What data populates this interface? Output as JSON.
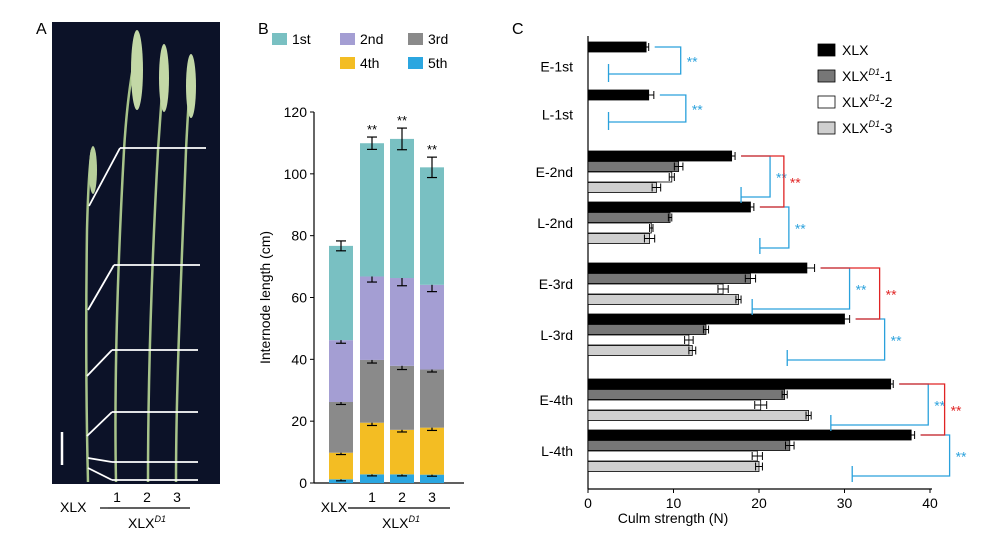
{
  "colors": {
    "first": "#79c0c2",
    "second": "#a49ed3",
    "third": "#8a8a8a",
    "fourth": "#f3bd23",
    "fifth": "#2ba6e0",
    "xlx": "#000000",
    "d1_1": "#777777",
    "d1_2": "#ffffff",
    "d1_3": "#cfcfcf",
    "sig_blue": "#2aa1dc",
    "sig_red": "#e02424",
    "photo_bg": "#0c1228",
    "plant": "#a8c48a"
  },
  "panel_a": {
    "label": "A",
    "xlx_label": "XLX",
    "mutant_base": "XLX",
    "mutant_sup": "D1",
    "plant_numbers": [
      "1",
      "2",
      "3"
    ]
  },
  "chart_data": [
    {
      "type": "bar",
      "stacked": true,
      "panel": "B",
      "categories": [
        "XLX",
        "1",
        "2",
        "3"
      ],
      "group_label_base": "XLX",
      "group_label_sup": "D1",
      "ylabel": "Internode length (cm)",
      "ylim": [
        0,
        120
      ],
      "yticks": [
        "0",
        "20",
        "40",
        "60",
        "80",
        "100",
        "120"
      ],
      "legend_position": "top",
      "significance_mark": "**",
      "series": [
        {
          "name": "5th",
          "values": [
            1.2,
            2.8,
            2.8,
            2.7
          ],
          "err": [
            0.5,
            0.5,
            0.5,
            0.5
          ],
          "sig": [
            false,
            true,
            true,
            true
          ]
        },
        {
          "name": "4th",
          "values": [
            8.6,
            16.7,
            14.4,
            15.2
          ],
          "err": [
            0.6,
            0.9,
            0.7,
            0.9
          ],
          "sig": [
            false,
            true,
            true,
            true
          ]
        },
        {
          "name": "3rd",
          "values": [
            16.4,
            20.3,
            20.7,
            18.8
          ],
          "err": [
            0.8,
            1.0,
            1.2,
            0.8
          ],
          "sig": [
            false,
            true,
            true,
            true
          ]
        },
        {
          "name": "2nd",
          "values": [
            20.0,
            27.0,
            28.4,
            27.4
          ],
          "err": [
            1.0,
            1.8,
            2.5,
            2.2
          ],
          "sig": [
            false,
            true,
            true,
            true
          ]
        },
        {
          "name": "1st",
          "values": [
            30.5,
            43.1,
            45.0,
            38.0
          ],
          "err": [
            1.6,
            2.0,
            3.5,
            3.3
          ],
          "sig": [
            false,
            true,
            true,
            true
          ]
        }
      ]
    },
    {
      "type": "bar",
      "orientation": "horizontal",
      "panel": "C",
      "categories": [
        "E-1st",
        "L-1st",
        "E-2nd",
        "L-2nd",
        "E-3rd",
        "L-3rd",
        "E-4th",
        "L-4th"
      ],
      "xlabel": "Culm strength (N)",
      "xlim": [
        0,
        40
      ],
      "xticks": [
        "0",
        "10",
        "20",
        "30",
        "40"
      ],
      "legend_position": "top-right",
      "series": [
        {
          "name_base": "XLX",
          "name_sup": "",
          "name_suffix": "",
          "values": [
            6.8,
            7.1,
            16.8,
            19.0,
            25.6,
            30.0,
            35.4,
            37.8
          ],
          "err": [
            0.3,
            0.6,
            0.4,
            0.4,
            0.9,
            0.6,
            0.3,
            0.4
          ]
        },
        {
          "name_base": "XLX",
          "name_sup": "D1",
          "name_suffix": "-1",
          "values": [
            null,
            null,
            10.6,
            9.6,
            19.0,
            13.8,
            23.0,
            23.6
          ],
          "err": [
            null,
            null,
            0.5,
            0.2,
            0.6,
            0.3,
            0.3,
            0.5
          ]
        },
        {
          "name_base": "XLX",
          "name_sup": "D1",
          "name_suffix": "-2",
          "values": [
            null,
            null,
            9.8,
            7.4,
            15.8,
            11.8,
            20.2,
            19.8
          ],
          "err": [
            null,
            null,
            0.3,
            0.2,
            0.6,
            0.5,
            0.7,
            0.6
          ]
        },
        {
          "name_base": "XLX",
          "name_sup": "D1",
          "name_suffix": "-3",
          "values": [
            null,
            null,
            8.0,
            7.2,
            17.6,
            12.2,
            25.8,
            20.0
          ],
          "err": [
            null,
            null,
            0.5,
            0.6,
            0.3,
            0.4,
            0.3,
            0.4
          ]
        }
      ],
      "significance": [
        {
          "categories": [
            "E-1st"
          ],
          "mark": "**",
          "color": "blue"
        },
        {
          "categories": [
            "L-1st"
          ],
          "mark": "**",
          "color": "blue"
        },
        {
          "categories": [
            "E-2nd"
          ],
          "mark": "**",
          "color": "blue"
        },
        {
          "categories": [
            "L-2nd"
          ],
          "mark": "**",
          "color": "blue"
        },
        {
          "categories": [
            "E-2nd",
            "L-2nd"
          ],
          "mark": "**",
          "color": "red"
        },
        {
          "categories": [
            "E-3rd"
          ],
          "mark": "**",
          "color": "blue"
        },
        {
          "categories": [
            "L-3rd"
          ],
          "mark": "**",
          "color": "blue"
        },
        {
          "categories": [
            "E-3rd",
            "L-3rd"
          ],
          "mark": "**",
          "color": "red"
        },
        {
          "categories": [
            "E-4th"
          ],
          "mark": "**",
          "color": "blue"
        },
        {
          "categories": [
            "L-4th"
          ],
          "mark": "**",
          "color": "blue"
        },
        {
          "categories": [
            "E-4th",
            "L-4th"
          ],
          "mark": "**",
          "color": "red"
        }
      ]
    }
  ]
}
